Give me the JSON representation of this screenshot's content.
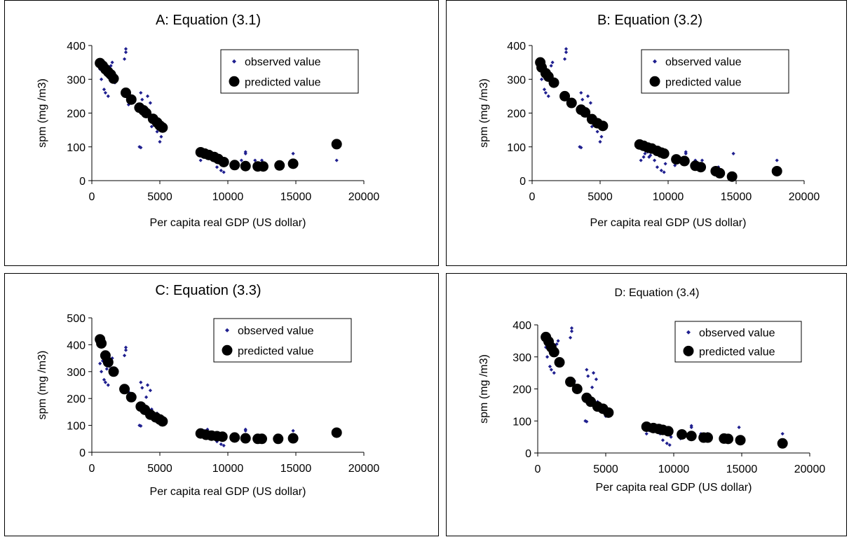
{
  "chart_data": [
    {
      "type": "scatter",
      "title": "A: Equation (3.1)",
      "xlabel": "Per capita real GDP (US dollar)",
      "ylabel": "spm (mg /m3)",
      "xlim": [
        0,
        20000
      ],
      "xticks": [
        0,
        5000,
        10000,
        15000,
        20000
      ],
      "ylim": [
        0,
        400
      ],
      "yticks": [
        0,
        100,
        200,
        300,
        400
      ],
      "grid": false,
      "legend": "top-right",
      "series": [
        {
          "name": "observed value",
          "marker": "small-diamond",
          "color": "#1f1f8f",
          "x": [
            600,
            700,
            800,
            900,
            1000,
            1100,
            1200,
            1300,
            1400,
            1500,
            1700,
            2400,
            2500,
            2500,
            2700,
            3500,
            3600,
            3600,
            3700,
            4000,
            4100,
            4300,
            4400,
            4800,
            5000,
            5100,
            8000,
            8200,
            8300,
            8500,
            8600,
            8700,
            8900,
            9000,
            9200,
            9500,
            9700,
            9800,
            10500,
            11000,
            11300,
            11300,
            12000,
            12500,
            13700,
            14800,
            18000
          ],
          "y": [
            330,
            300,
            340,
            270,
            260,
            310,
            250,
            320,
            340,
            350,
            290,
            360,
            380,
            390,
            225,
            100,
            98,
            260,
            240,
            205,
            250,
            230,
            160,
            145,
            115,
            130,
            60,
            70,
            80,
            85,
            70,
            75,
            70,
            60,
            40,
            30,
            25,
            50,
            45,
            60,
            80,
            85,
            60,
            60,
            40,
            80,
            60
          ]
        },
        {
          "name": "predicted value",
          "marker": "large-circle",
          "color": "#000000",
          "x": [
            600,
            800,
            1000,
            1200,
            1400,
            1600,
            2500,
            2900,
            3500,
            3800,
            4000,
            4500,
            4800,
            5000,
            5200,
            8000,
            8300,
            8600,
            9000,
            9300,
            9700,
            10500,
            11300,
            12200,
            12600,
            13800,
            14800,
            18000
          ],
          "y": [
            348,
            340,
            330,
            322,
            314,
            302,
            260,
            240,
            216,
            208,
            200,
            183,
            172,
            163,
            157,
            84,
            80,
            76,
            70,
            64,
            55,
            46,
            43,
            42,
            42,
            45,
            50,
            108
          ]
        }
      ]
    },
    {
      "type": "scatter",
      "title": "B: Equation (3.2)",
      "xlabel": "Per capita real GDP (US dollar)",
      "ylabel": "spm (mg /m3)",
      "xlim": [
        0,
        20000
      ],
      "xticks": [
        0,
        5000,
        10000,
        15000,
        20000
      ],
      "ylim": [
        0,
        400
      ],
      "yticks": [
        0,
        100,
        200,
        300,
        400
      ],
      "grid": false,
      "legend": "top-right",
      "series": [
        {
          "name": "observed value",
          "marker": "small-diamond",
          "color": "#1f1f8f",
          "x": [
            600,
            700,
            800,
            900,
            1000,
            1100,
            1200,
            1300,
            1400,
            1500,
            1700,
            2400,
            2500,
            2500,
            2700,
            3500,
            3600,
            3600,
            3700,
            4000,
            4100,
            4300,
            4400,
            4800,
            5000,
            5100,
            8000,
            8200,
            8300,
            8500,
            8600,
            8700,
            9000,
            9200,
            9500,
            9700,
            9800,
            10500,
            11300,
            11300,
            12000,
            12500,
            13700,
            14800,
            18000
          ],
          "y": [
            330,
            300,
            340,
            270,
            260,
            310,
            250,
            320,
            340,
            350,
            290,
            360,
            380,
            390,
            225,
            100,
            98,
            260,
            240,
            205,
            250,
            230,
            160,
            145,
            115,
            130,
            60,
            70,
            80,
            85,
            70,
            75,
            60,
            40,
            30,
            25,
            50,
            45,
            80,
            85,
            60,
            60,
            40,
            80,
            60
          ]
        },
        {
          "name": "predicted value",
          "marker": "large-circle",
          "color": "#000000",
          "x": [
            600,
            700,
            1000,
            1200,
            1600,
            2400,
            2900,
            3600,
            3900,
            4400,
            4800,
            5200,
            7900,
            8200,
            8500,
            8800,
            9200,
            9500,
            9700,
            10600,
            11200,
            12000,
            12400,
            13500,
            13800,
            14700,
            18000
          ],
          "y": [
            350,
            335,
            318,
            308,
            290,
            250,
            230,
            210,
            202,
            182,
            170,
            162,
            107,
            103,
            98,
            95,
            88,
            83,
            80,
            63,
            58,
            44,
            40,
            28,
            22,
            12,
            28
          ]
        }
      ]
    },
    {
      "type": "scatter",
      "title": "C: Equation (3.3)",
      "xlabel": "Per capita real GDP (US dollar)",
      "ylabel": "spm (mg /m3)",
      "xlim": [
        0,
        20000
      ],
      "xticks": [
        0,
        5000,
        10000,
        15000,
        20000
      ],
      "ylim": [
        0,
        500
      ],
      "yticks": [
        0,
        100,
        200,
        300,
        400,
        500
      ],
      "grid": false,
      "legend": "top-right",
      "series": [
        {
          "name": "observed value",
          "marker": "small-diamond",
          "color": "#1f1f8f",
          "x": [
            600,
            700,
            800,
            900,
            1000,
            1100,
            1200,
            1300,
            1400,
            1500,
            1700,
            2400,
            2500,
            2500,
            2700,
            3500,
            3600,
            3600,
            3700,
            4000,
            4100,
            4300,
            4400,
            4800,
            5000,
            5100,
            8000,
            8200,
            8300,
            8500,
            8600,
            8700,
            9000,
            9200,
            9500,
            9700,
            9800,
            10500,
            11300,
            11300,
            12000,
            12500,
            13700,
            14800,
            18000
          ],
          "y": [
            330,
            300,
            340,
            270,
            260,
            310,
            250,
            320,
            340,
            350,
            290,
            360,
            380,
            390,
            225,
            100,
            98,
            260,
            240,
            205,
            250,
            230,
            160,
            145,
            115,
            130,
            60,
            70,
            80,
            85,
            70,
            75,
            60,
            40,
            30,
            25,
            50,
            45,
            80,
            85,
            60,
            60,
            40,
            80,
            60
          ]
        },
        {
          "name": "predicted value",
          "marker": "large-circle",
          "color": "#000000",
          "x": [
            600,
            700,
            1000,
            1200,
            1600,
            2400,
            2900,
            3600,
            3900,
            4300,
            4700,
            5000,
            5200,
            8000,
            8400,
            8800,
            9200,
            9600,
            10500,
            11300,
            12200,
            12500,
            13700,
            14800,
            18000
          ],
          "y": [
            420,
            405,
            360,
            335,
            300,
            235,
            205,
            170,
            158,
            140,
            130,
            122,
            115,
            70,
            65,
            62,
            60,
            58,
            55,
            52,
            50,
            50,
            50,
            52,
            73
          ]
        }
      ]
    },
    {
      "type": "scatter",
      "title": "D: Equation (3.4)",
      "xlabel": "Per capita real GDP (US dollar)",
      "ylabel": "spm (mg /m3)",
      "xlim": [
        0,
        20000
      ],
      "xticks": [
        0,
        5000,
        10000,
        15000,
        20000
      ],
      "ylim": [
        0,
        400
      ],
      "yticks": [
        0,
        100,
        200,
        300,
        400
      ],
      "grid": false,
      "legend": "top-right",
      "series": [
        {
          "name": "observed value",
          "marker": "small-diamond",
          "color": "#1f1f8f",
          "x": [
            600,
            700,
            800,
            900,
            1000,
            1100,
            1200,
            1300,
            1400,
            1500,
            1700,
            2400,
            2500,
            2500,
            2700,
            3500,
            3600,
            3600,
            3700,
            4000,
            4100,
            4300,
            4400,
            4800,
            5000,
            5100,
            8000,
            8200,
            8300,
            8500,
            8600,
            8700,
            9000,
            9200,
            9500,
            9700,
            9800,
            10500,
            11300,
            11300,
            12000,
            12500,
            13700,
            14800,
            18000
          ],
          "y": [
            330,
            300,
            340,
            270,
            260,
            310,
            250,
            320,
            340,
            350,
            290,
            360,
            380,
            390,
            225,
            100,
            98,
            260,
            240,
            205,
            250,
            230,
            160,
            145,
            115,
            130,
            60,
            70,
            80,
            85,
            70,
            75,
            60,
            40,
            30,
            25,
            50,
            45,
            80,
            85,
            60,
            60,
            40,
            80,
            60
          ]
        },
        {
          "name": "predicted value",
          "marker": "large-circle",
          "color": "#000000",
          "x": [
            600,
            800,
            1000,
            1200,
            1600,
            2400,
            2900,
            3600,
            3900,
            4400,
            4800,
            5200,
            8000,
            8500,
            8900,
            9200,
            9600,
            10600,
            11300,
            12200,
            12500,
            13700,
            14000,
            14900,
            18000
          ],
          "y": [
            362,
            348,
            330,
            315,
            283,
            222,
            200,
            172,
            160,
            145,
            138,
            126,
            82,
            78,
            75,
            72,
            68,
            58,
            53,
            48,
            48,
            45,
            44,
            40,
            30
          ]
        }
      ]
    }
  ]
}
